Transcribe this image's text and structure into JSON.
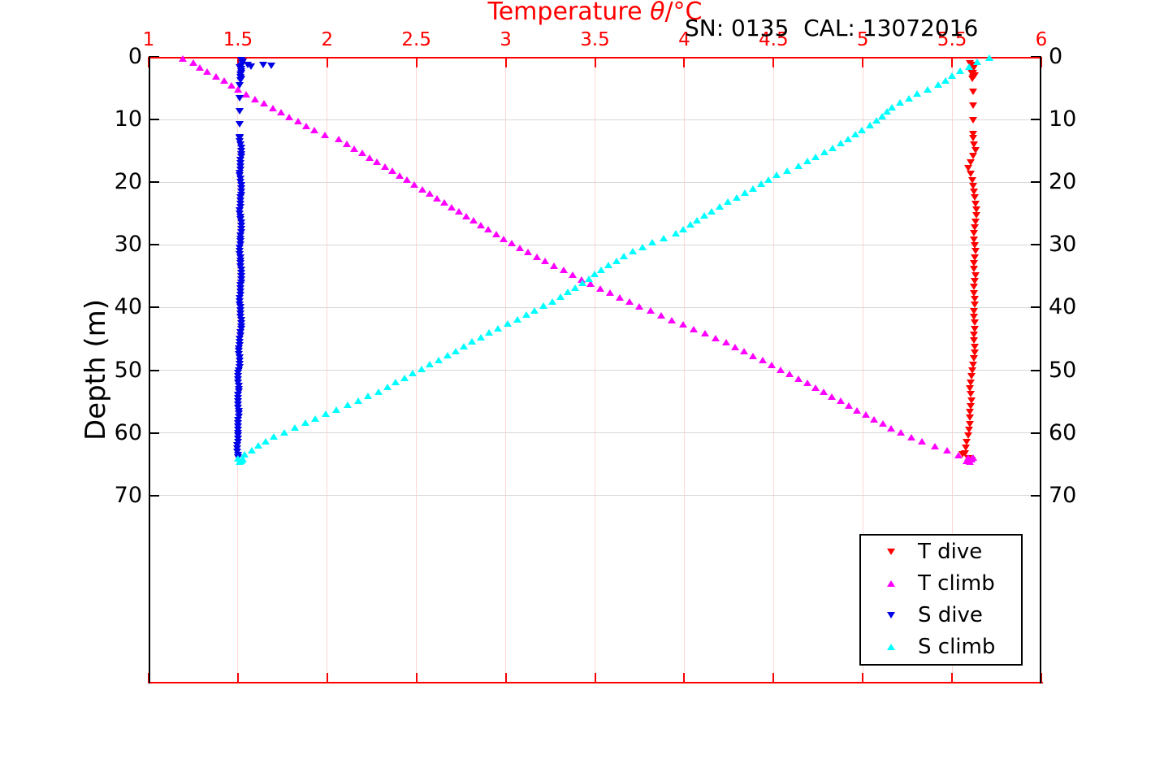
{
  "ui": {
    "title": {
      "pre": "Temperature ",
      "theta": "θ",
      "post": "/°C"
    },
    "annotation": "SN: 0135  CAL: 13072016",
    "ylabel": "Depth (m)"
  },
  "colors": {
    "title": "#ff0000",
    "x_axis": "#ff0000",
    "y_axis": "#000000",
    "x_tick_label": "#ff0000",
    "y_tick_label": "#000000",
    "grid_vertical": "#ffd6d6",
    "grid_horizontal": "#d8d8d8",
    "t_dive": "#ff0000",
    "t_climb": "#ff00ff",
    "s_dive": "#0000e6",
    "s_climb": "#00ffff"
  },
  "chart_data": {
    "type": "scatter",
    "title": "Temperature θ/°C",
    "annotation": "SN: 0135  CAL: 13072016",
    "xlabel": "Temperature θ/°C",
    "ylabel": "Depth (m)",
    "xlim": [
      1,
      6
    ],
    "ylim": [
      0,
      100
    ],
    "y_inverted": true,
    "grid": true,
    "legend_position": "lower right",
    "xticks": [
      1,
      1.5,
      2,
      2.5,
      3,
      3.5,
      4,
      4.5,
      5,
      5.5,
      6
    ],
    "xtick_labels": [
      "1",
      "1.5",
      "2",
      "2.5",
      "3",
      "3.5",
      "4",
      "4.5",
      "5",
      "5.5",
      "6"
    ],
    "yticks": [
      0,
      10,
      20,
      30,
      40,
      50,
      60,
      70
    ],
    "ytick_labels": [
      "0",
      "10",
      "20",
      "30",
      "40",
      "50",
      "60",
      "70"
    ],
    "series": [
      {
        "name": "T dive",
        "color": "#ff0000",
        "marker": "triangle-down",
        "profile_points": [
          [
            5.6,
            1.0
          ],
          [
            5.61,
            1.4
          ],
          [
            5.63,
            1.8
          ],
          [
            5.6,
            2.2
          ],
          [
            5.62,
            2.6
          ],
          [
            5.63,
            3.0
          ],
          [
            5.61,
            3.4
          ],
          [
            5.62,
            3.8
          ],
          [
            5.62,
            5.6
          ],
          [
            5.62,
            8.0
          ],
          [
            5.62,
            10.1
          ],
          [
            5.62,
            12.3
          ],
          [
            5.62,
            13.6
          ],
          [
            5.63,
            15
          ],
          [
            5.6,
            17
          ],
          [
            5.59,
            17.8
          ],
          [
            5.61,
            19
          ],
          [
            5.62,
            21
          ],
          [
            5.63,
            23
          ],
          [
            5.64,
            25
          ],
          [
            5.63,
            27
          ],
          [
            5.62,
            29
          ],
          [
            5.63,
            31
          ],
          [
            5.62,
            33
          ],
          [
            5.63,
            35
          ],
          [
            5.62,
            37
          ],
          [
            5.63,
            39
          ],
          [
            5.62,
            41
          ],
          [
            5.63,
            43
          ],
          [
            5.62,
            45
          ],
          [
            5.63,
            47
          ],
          [
            5.62,
            49
          ],
          [
            5.61,
            51
          ],
          [
            5.6,
            53
          ],
          [
            5.61,
            55
          ],
          [
            5.6,
            57
          ],
          [
            5.6,
            59
          ],
          [
            5.59,
            60.5
          ],
          [
            5.58,
            62
          ],
          [
            5.57,
            63
          ],
          [
            5.58,
            63.8
          ],
          [
            5.6,
            64.5
          ]
        ],
        "marker_segments": [
          [
            1.0,
            3.8,
            0.32
          ],
          [
            5.6,
            12.3,
            2.23
          ],
          [
            13.0,
            64.5,
            0.95
          ]
        ],
        "extra_points": [
          [
            5.56,
            63.4
          ],
          [
            5.59,
            64.1
          ],
          [
            5.61,
            64.3
          ]
        ]
      },
      {
        "name": "T climb",
        "color": "#ff00ff",
        "marker": "triangle-up",
        "profile_points": [
          [
            1.19,
            0.2
          ],
          [
            1.22,
            0.5
          ],
          [
            1.26,
            1.1
          ],
          [
            1.3,
            1.9
          ],
          [
            1.34,
            2.6
          ],
          [
            1.4,
            3.4
          ],
          [
            1.45,
            4.2
          ],
          [
            1.51,
            5.4
          ],
          [
            1.57,
            6.3
          ],
          [
            1.63,
            7.2
          ],
          [
            1.7,
            8.2
          ],
          [
            1.77,
            9.3
          ],
          [
            1.84,
            10.3
          ],
          [
            1.92,
            11.6
          ],
          [
            2.0,
            12.6
          ],
          [
            2.07,
            13.2
          ],
          [
            2.3,
            17.1
          ],
          [
            2.55,
            21.4
          ],
          [
            2.8,
            25.8
          ],
          [
            3.0,
            29.2
          ],
          [
            3.2,
            32.3
          ],
          [
            3.44,
            35.7
          ],
          [
            3.7,
            39.2
          ],
          [
            3.95,
            42.2
          ],
          [
            4.2,
            45.1
          ],
          [
            4.45,
            48.6
          ],
          [
            4.7,
            52.2
          ],
          [
            4.95,
            56.1
          ],
          [
            5.17,
            59.4
          ],
          [
            5.32,
            61.3
          ],
          [
            5.45,
            62.6
          ],
          [
            5.56,
            63.8
          ],
          [
            5.6,
            64.3
          ]
        ],
        "marker_segments": [
          [
            0.2,
            63.8,
            0.72
          ]
        ],
        "extra_points": [
          [
            5.59,
            64.0
          ],
          [
            5.61,
            64.2
          ],
          [
            5.58,
            64.4
          ],
          [
            5.6,
            64.6
          ],
          [
            5.62,
            63.9
          ]
        ]
      },
      {
        "name": "S dive",
        "color": "#0000e6",
        "marker": "triangle-down",
        "profile_points": [
          [
            1.52,
            0.5
          ],
          [
            1.53,
            0.9
          ],
          [
            1.52,
            1.3
          ],
          [
            1.51,
            1.7
          ],
          [
            1.52,
            2.1
          ],
          [
            1.52,
            2.6
          ],
          [
            1.51,
            3.1
          ],
          [
            1.52,
            3.6
          ],
          [
            1.51,
            4.0
          ],
          [
            1.51,
            5.5
          ],
          [
            1.51,
            8.0
          ],
          [
            1.51,
            10.0
          ],
          [
            1.51,
            12.5
          ],
          [
            1.51,
            13.5
          ],
          [
            1.52,
            15
          ],
          [
            1.515,
            17
          ],
          [
            1.51,
            19
          ],
          [
            1.52,
            21
          ],
          [
            1.515,
            23
          ],
          [
            1.51,
            25
          ],
          [
            1.52,
            27
          ],
          [
            1.515,
            29
          ],
          [
            1.51,
            31
          ],
          [
            1.515,
            33
          ],
          [
            1.52,
            35
          ],
          [
            1.515,
            37
          ],
          [
            1.51,
            39
          ],
          [
            1.515,
            41
          ],
          [
            1.52,
            43
          ],
          [
            1.51,
            45
          ],
          [
            1.505,
            47
          ],
          [
            1.51,
            49
          ],
          [
            1.5,
            51
          ],
          [
            1.505,
            53
          ],
          [
            1.5,
            55
          ],
          [
            1.505,
            57
          ],
          [
            1.5,
            59
          ],
          [
            1.5,
            61
          ],
          [
            1.495,
            62.5
          ],
          [
            1.5,
            63.5
          ],
          [
            1.5,
            64.4
          ]
        ],
        "marker_segments": [
          [
            0.5,
            4.0,
            0.3
          ],
          [
            4.6,
            12.8,
            2.05
          ],
          [
            13.0,
            64.4,
            0.5
          ]
        ],
        "extra_points": [
          [
            1.555,
            1.3
          ],
          [
            1.575,
            1.5
          ],
          [
            1.64,
            1.3
          ],
          [
            1.685,
            1.4
          ]
        ]
      },
      {
        "name": "S climb",
        "color": "#00ffff",
        "marker": "triangle-up",
        "profile_points": [
          [
            5.71,
            0.1
          ],
          [
            5.66,
            0.5
          ],
          [
            5.6,
            1.5
          ],
          [
            5.55,
            2.2
          ],
          [
            5.5,
            3.0
          ],
          [
            5.43,
            4.3
          ],
          [
            5.39,
            4.8
          ],
          [
            5.31,
            5.8
          ],
          [
            5.23,
            7.0
          ],
          [
            5.17,
            7.8
          ],
          [
            5.07,
            10.4
          ],
          [
            4.99,
            11.7
          ],
          [
            4.89,
            13.6
          ],
          [
            4.76,
            15.6
          ],
          [
            4.63,
            17.5
          ],
          [
            4.5,
            19.0
          ],
          [
            4.44,
            20.1
          ],
          [
            4.3,
            22.3
          ],
          [
            4.15,
            24.6
          ],
          [
            3.96,
            28.1
          ],
          [
            3.82,
            29.6
          ],
          [
            3.66,
            31.8
          ],
          [
            3.53,
            34.0
          ],
          [
            3.44,
            35.9
          ],
          [
            3.28,
            38.7
          ],
          [
            3.09,
            41.5
          ],
          [
            2.9,
            44.1
          ],
          [
            2.7,
            47.2
          ],
          [
            2.5,
            50.2
          ],
          [
            2.3,
            53.2
          ],
          [
            2.16,
            55.0
          ],
          [
            2.04,
            56.4
          ],
          [
            1.95,
            57.5
          ],
          [
            1.87,
            58.5
          ],
          [
            1.79,
            59.5
          ],
          [
            1.72,
            60.3
          ],
          [
            1.66,
            61.2
          ],
          [
            1.6,
            62.3
          ],
          [
            1.55,
            63.2
          ],
          [
            1.52,
            63.9
          ]
        ],
        "marker_segments": [
          [
            0.1,
            63.9,
            0.72
          ]
        ],
        "extra_points": [
          [
            1.5,
            64.1
          ],
          [
            1.52,
            64.4
          ],
          [
            1.51,
            64.6
          ],
          [
            1.53,
            64.2
          ]
        ]
      }
    ]
  }
}
